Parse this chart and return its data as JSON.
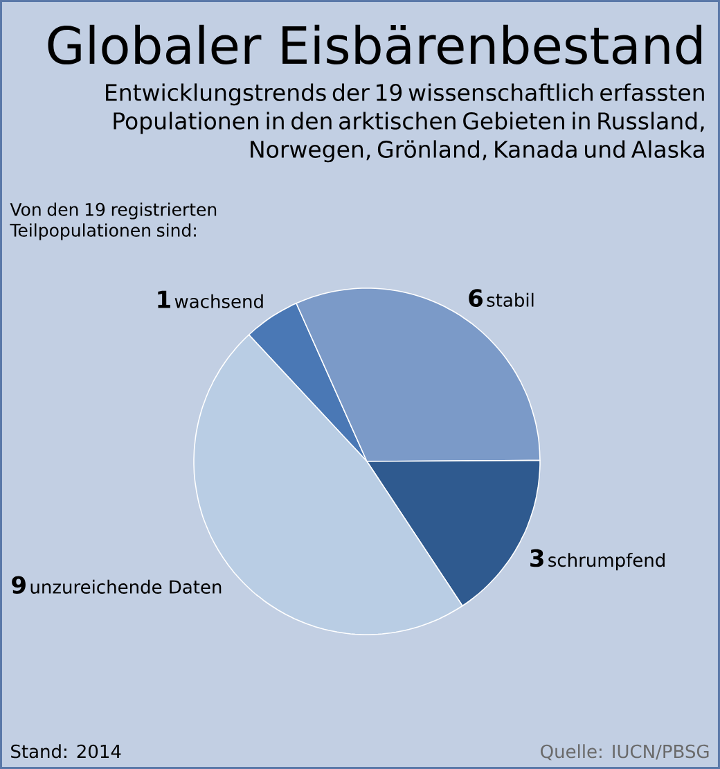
{
  "chart_data": {
    "type": "pie",
    "title": "Globaler Eisbärenbestand",
    "subtitle": "Entwicklungstrends der 19 wissenschaftlich erfassten Populationen in den arktischen Gebieten in Russland, Norwegen, Grönland, Kanada und Alaska",
    "annotations": [
      "Von den 19 registrierten Teilpopulationen sind:",
      "Stand: 2014",
      "Quelle: IUCN/PBSG"
    ],
    "categories": [
      "wachsend",
      "stabil",
      "schrumpfend",
      "unzureichende Daten"
    ],
    "values": [
      1,
      6,
      3,
      9
    ],
    "colors": [
      "#4a78b5",
      "#7b9ac8",
      "#2f5a8f",
      "#b9cde4"
    ],
    "data_labels": true
  }
}
